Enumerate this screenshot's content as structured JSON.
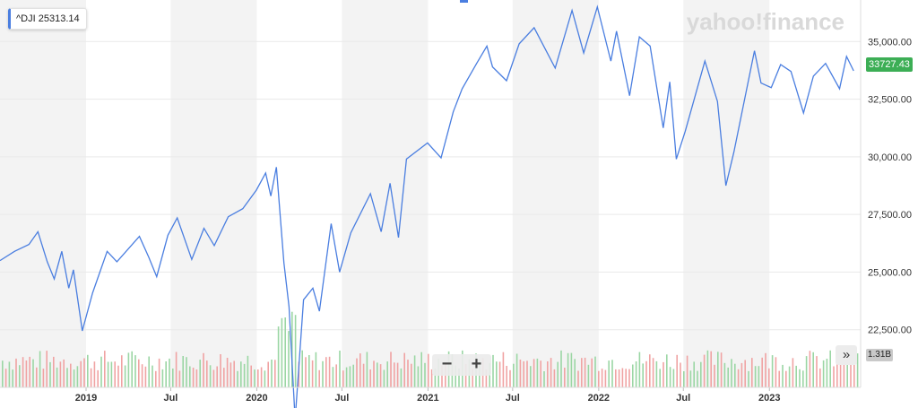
{
  "overlay": {
    "ticker": "^DJI",
    "ticker_value": "25313.14",
    "last_price": "33727.43",
    "volume": "1.31B",
    "watermark": "yahoo!finance",
    "zoom_out_label": "−",
    "zoom_in_label": "+",
    "expand_label": "»"
  },
  "colors": {
    "line": "#4a7ee0",
    "band": "#f3f3f3",
    "grid": "#e9e9e9",
    "volume_up": "#9bd6a4",
    "volume_down": "#f0a3a3",
    "price_badge": "#3cae55"
  },
  "chart_data": {
    "type": "line",
    "title": "",
    "xlabel": "",
    "ylabel": "",
    "series": [
      {
        "values": [
          {
            "x": "2018-07-01",
            "y": 25500
          },
          {
            "x": "2018-08-01",
            "y": 25900
          },
          {
            "x": "2018-09-01",
            "y": 26200
          },
          {
            "x": "2018-09-20",
            "y": 26750
          },
          {
            "x": "2018-10-10",
            "y": 25450
          },
          {
            "x": "2018-10-25",
            "y": 24700
          },
          {
            "x": "2018-11-10",
            "y": 25900
          },
          {
            "x": "2018-11-25",
            "y": 24300
          },
          {
            "x": "2018-12-05",
            "y": 25100
          },
          {
            "x": "2018-12-24",
            "y": 22450
          },
          {
            "x": "2019-01-15",
            "y": 24100
          },
          {
            "x": "2019-02-15",
            "y": 25900
          },
          {
            "x": "2019-03-08",
            "y": 25450
          },
          {
            "x": "2019-04-25",
            "y": 26550
          },
          {
            "x": "2019-05-15",
            "y": 25650
          },
          {
            "x": "2019-06-01",
            "y": 24800
          },
          {
            "x": "2019-06-25",
            "y": 26600
          },
          {
            "x": "2019-07-15",
            "y": 27350
          },
          {
            "x": "2019-08-15",
            "y": 25550
          },
          {
            "x": "2019-09-10",
            "y": 26900
          },
          {
            "x": "2019-10-02",
            "y": 26150
          },
          {
            "x": "2019-11-01",
            "y": 27400
          },
          {
            "x": "2019-12-02",
            "y": 27750
          },
          {
            "x": "2019-12-31",
            "y": 28550
          },
          {
            "x": "2020-01-20",
            "y": 29300
          },
          {
            "x": "2020-01-31",
            "y": 28300
          },
          {
            "x": "2020-02-12",
            "y": 29550
          },
          {
            "x": "2020-02-28",
            "y": 25400
          },
          {
            "x": "2020-03-10",
            "y": 23500
          },
          {
            "x": "2020-03-23",
            "y": 18600
          },
          {
            "x": "2020-04-10",
            "y": 23800
          },
          {
            "x": "2020-04-30",
            "y": 24300
          },
          {
            "x": "2020-05-14",
            "y": 23300
          },
          {
            "x": "2020-06-08",
            "y": 27100
          },
          {
            "x": "2020-06-26",
            "y": 25000
          },
          {
            "x": "2020-07-20",
            "y": 26700
          },
          {
            "x": "2020-08-31",
            "y": 28400
          },
          {
            "x": "2020-09-23",
            "y": 26750
          },
          {
            "x": "2020-10-12",
            "y": 28850
          },
          {
            "x": "2020-10-30",
            "y": 26500
          },
          {
            "x": "2020-11-16",
            "y": 29900
          },
          {
            "x": "2020-12-31",
            "y": 30600
          },
          {
            "x": "2021-01-29",
            "y": 29950
          },
          {
            "x": "2021-02-24",
            "y": 31950
          },
          {
            "x": "2021-03-15",
            "y": 32950
          },
          {
            "x": "2021-04-15",
            "y": 34050
          },
          {
            "x": "2021-05-07",
            "y": 34800
          },
          {
            "x": "2021-05-19",
            "y": 33900
          },
          {
            "x": "2021-06-18",
            "y": 33300
          },
          {
            "x": "2021-07-15",
            "y": 34900
          },
          {
            "x": "2021-08-16",
            "y": 35600
          },
          {
            "x": "2021-09-30",
            "y": 33850
          },
          {
            "x": "2021-11-05",
            "y": 36350
          },
          {
            "x": "2021-11-30",
            "y": 34500
          },
          {
            "x": "2021-12-29",
            "y": 36500
          },
          {
            "x": "2022-01-27",
            "y": 34150
          },
          {
            "x": "2022-02-08",
            "y": 35450
          },
          {
            "x": "2022-03-08",
            "y": 32650
          },
          {
            "x": "2022-03-29",
            "y": 35200
          },
          {
            "x": "2022-04-21",
            "y": 34800
          },
          {
            "x": "2022-05-19",
            "y": 31250
          },
          {
            "x": "2022-06-02",
            "y": 33250
          },
          {
            "x": "2022-06-16",
            "y": 29900
          },
          {
            "x": "2022-07-05",
            "y": 31100
          },
          {
            "x": "2022-08-16",
            "y": 34150
          },
          {
            "x": "2022-09-12",
            "y": 32400
          },
          {
            "x": "2022-09-30",
            "y": 28750
          },
          {
            "x": "2022-10-17",
            "y": 30200
          },
          {
            "x": "2022-11-30",
            "y": 34600
          },
          {
            "x": "2022-12-14",
            "y": 33200
          },
          {
            "x": "2023-01-05",
            "y": 33000
          },
          {
            "x": "2023-01-25",
            "y": 34000
          },
          {
            "x": "2023-02-16",
            "y": 33700
          },
          {
            "x": "2023-03-15",
            "y": 31900
          },
          {
            "x": "2023-04-05",
            "y": 33500
          },
          {
            "x": "2023-05-01",
            "y": 34050
          },
          {
            "x": "2023-05-31",
            "y": 32950
          },
          {
            "x": "2023-06-15",
            "y": 34350
          },
          {
            "x": "2023-06-30",
            "y": 33727
          }
        ]
      }
    ],
    "y_ticks": [
      "22,500.00",
      "25,000.00",
      "27,500.00",
      "30,000.00",
      "32,500.00",
      "35,000.00"
    ],
    "y_tick_values": [
      22500,
      25000,
      27500,
      30000,
      32500,
      35000
    ],
    "x_ticks": [
      {
        "x": "2019-01-01",
        "label": "2019"
      },
      {
        "x": "2019-07-01",
        "label": "Jul"
      },
      {
        "x": "2020-01-01",
        "label": "2020"
      },
      {
        "x": "2020-07-01",
        "label": "Jul"
      },
      {
        "x": "2021-01-01",
        "label": "2021"
      },
      {
        "x": "2021-07-01",
        "label": "Jul"
      },
      {
        "x": "2022-01-01",
        "label": "2022"
      },
      {
        "x": "2022-07-01",
        "label": "Jul"
      },
      {
        "x": "2023-01-01",
        "label": "2023"
      }
    ],
    "xlim": [
      "2018-07-01",
      "2023-07-15"
    ],
    "ylim": [
      20000,
      36800
    ],
    "grid": true,
    "legend": "none"
  }
}
